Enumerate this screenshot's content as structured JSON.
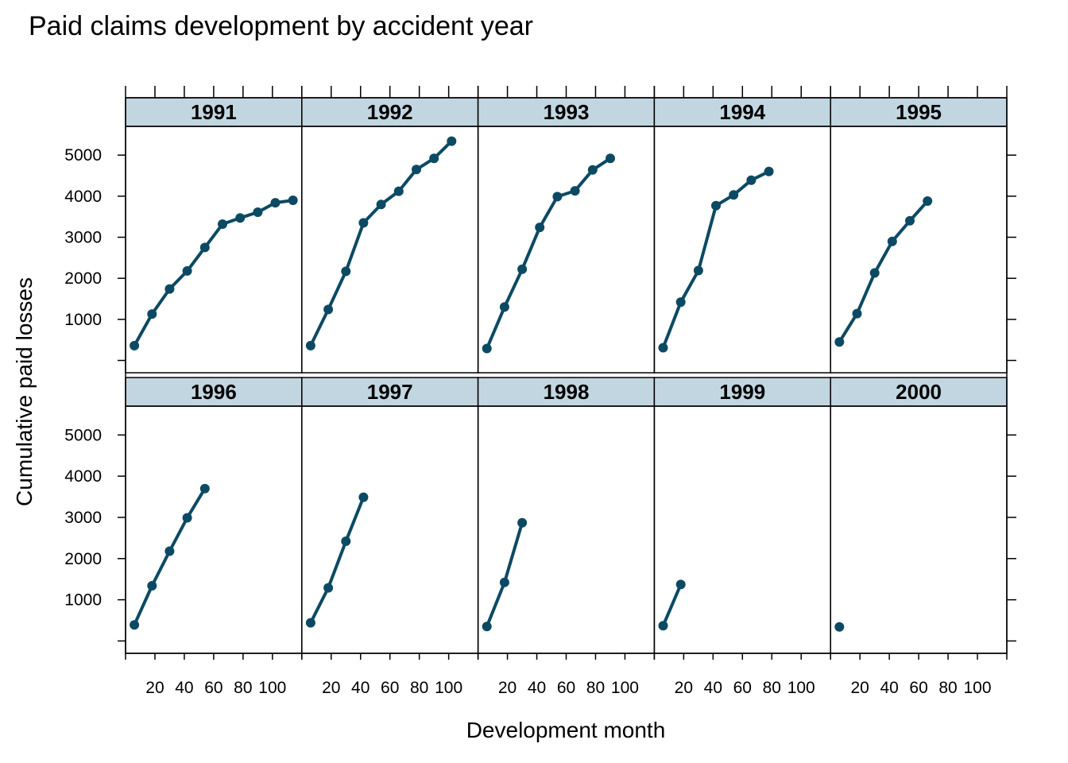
{
  "chart_data": {
    "type": "line",
    "title": "Paid claims development by accident year",
    "xlabel": "Development month",
    "ylabel": "Cumulative paid losses",
    "xlim": [
      0,
      120
    ],
    "ylim": [
      -300,
      5700
    ],
    "x_ticks": [
      0,
      20,
      40,
      60,
      80,
      100,
      120
    ],
    "x_tick_labels": [
      "20",
      "40",
      "60",
      "80",
      "100"
    ],
    "y_ticks": [
      0,
      1000,
      2000,
      3000,
      4000,
      5000
    ],
    "y_tick_labels": [
      "1000",
      "2000",
      "3000",
      "4000",
      "5000"
    ],
    "layout": {
      "columns": 5,
      "rows": 2
    },
    "colors": {
      "series": "#0c4a63",
      "strip": "#c2d6e1"
    },
    "series": [
      {
        "name": "1991",
        "x": [
          6,
          18,
          30,
          42,
          54,
          66,
          78,
          90,
          102,
          114
        ],
        "values": [
          360,
          1130,
          1740,
          2180,
          2750,
          3320,
          3470,
          3610,
          3840,
          3900
        ]
      },
      {
        "name": "1992",
        "x": [
          6,
          18,
          30,
          42,
          54,
          66,
          78,
          90,
          102
        ],
        "values": [
          360,
          1240,
          2170,
          3350,
          3800,
          4120,
          4650,
          4920,
          5340
        ]
      },
      {
        "name": "1993",
        "x": [
          6,
          18,
          30,
          42,
          54,
          66,
          78,
          90
        ],
        "values": [
          290,
          1300,
          2220,
          3240,
          3990,
          4130,
          4640,
          4920
        ]
      },
      {
        "name": "1994",
        "x": [
          6,
          18,
          30,
          42,
          54,
          66,
          78
        ],
        "values": [
          310,
          1420,
          2190,
          3770,
          4030,
          4390,
          4600
        ]
      },
      {
        "name": "1995",
        "x": [
          6,
          18,
          30,
          42,
          54,
          66
        ],
        "values": [
          450,
          1140,
          2130,
          2900,
          3400,
          3880
        ]
      },
      {
        "name": "1996",
        "x": [
          6,
          18,
          30,
          42,
          54
        ],
        "values": [
          390,
          1340,
          2180,
          2990,
          3700
        ]
      },
      {
        "name": "1997",
        "x": [
          6,
          18,
          30,
          42
        ],
        "values": [
          440,
          1290,
          2420,
          3490
        ]
      },
      {
        "name": "1998",
        "x": [
          6,
          18,
          30
        ],
        "values": [
          350,
          1420,
          2870
        ]
      },
      {
        "name": "1999",
        "x": [
          6,
          18
        ],
        "values": [
          370,
          1370
        ]
      },
      {
        "name": "2000",
        "x": [
          6
        ],
        "values": [
          340
        ]
      }
    ]
  }
}
